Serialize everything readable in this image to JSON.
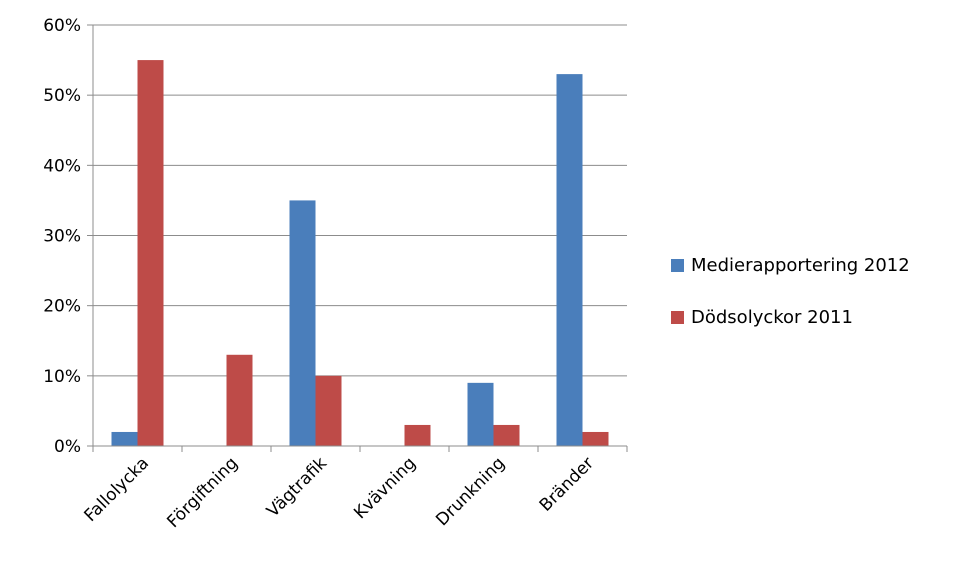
{
  "chart_data": {
    "type": "bar",
    "title": "",
    "xlabel": "",
    "ylabel": "",
    "categories": [
      "Fallolycka",
      "Förgiftning",
      "Vägtrafik",
      "Kvävning",
      "Drunkning",
      "Bränder"
    ],
    "series": [
      {
        "name": "Medierapportering 2012",
        "color": "#4a7ebb",
        "values": [
          2,
          0,
          35,
          0,
          9,
          53
        ]
      },
      {
        "name": "Dödsolyckor 2011",
        "color": "#be4b48",
        "values": [
          55,
          13,
          10,
          3,
          3,
          2
        ]
      }
    ],
    "ylim": [
      0,
      60
    ],
    "yticks": [
      0,
      10,
      20,
      30,
      40,
      50,
      60
    ],
    "ytick_labels": [
      "0%",
      "10%",
      "20%",
      "30%",
      "40%",
      "50%",
      "60%"
    ],
    "grid": true,
    "legend_position": "right"
  }
}
